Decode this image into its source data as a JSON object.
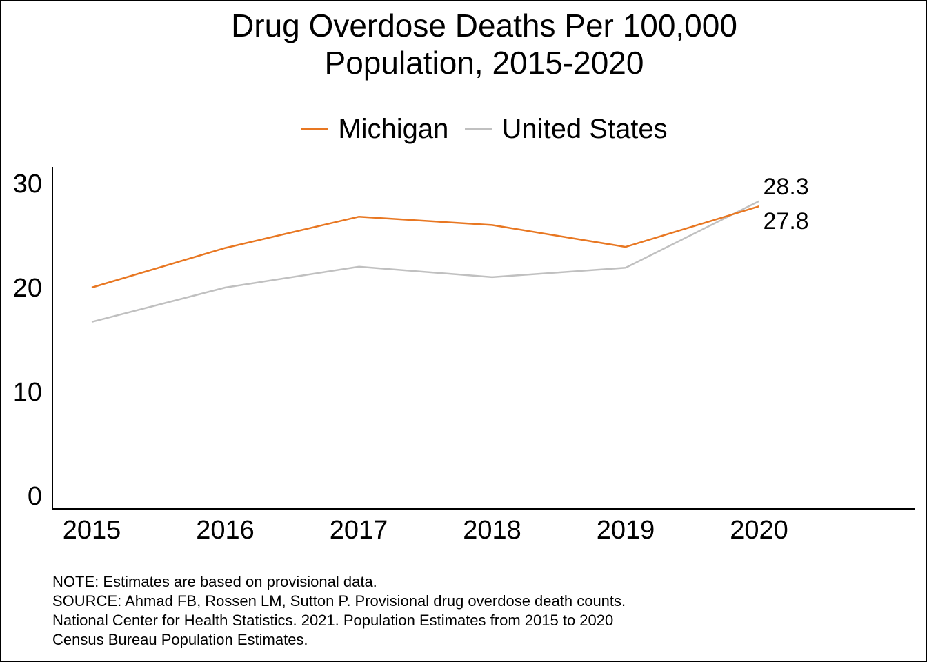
{
  "chart_data": {
    "type": "line",
    "title_lines": [
      "Drug Overdose Deaths Per 100,000",
      "Population, 2015-2020"
    ],
    "xlabel": "",
    "ylabel": "",
    "x": [
      "2015",
      "2016",
      "2017",
      "2018",
      "2019",
      "2020"
    ],
    "ylim": [
      0,
      30
    ],
    "yticks": [
      0,
      10,
      20,
      30
    ],
    "legend_position": "top-center",
    "grid": false,
    "series": [
      {
        "name": "Michigan",
        "color": "#E87722",
        "values": [
          20.0,
          23.8,
          26.8,
          26.0,
          23.9,
          27.8
        ]
      },
      {
        "name": "United States",
        "color": "#C0C0C0",
        "values": [
          16.7,
          20.0,
          22.0,
          21.0,
          21.9,
          28.3
        ]
      }
    ],
    "end_labels": [
      {
        "series": "United States",
        "text": "28.3"
      },
      {
        "series": "Michigan",
        "text": "27.8"
      }
    ]
  },
  "notes": [
    "NOTE: Estimates are based on provisional data.",
    "SOURCE: Ahmad FB, Rossen LM, Sutton P. Provisional drug overdose death counts.",
    "National Center for Health Statistics. 2021. Population Estimates from 2015 to 2020",
    "Census Bureau Population Estimates."
  ]
}
